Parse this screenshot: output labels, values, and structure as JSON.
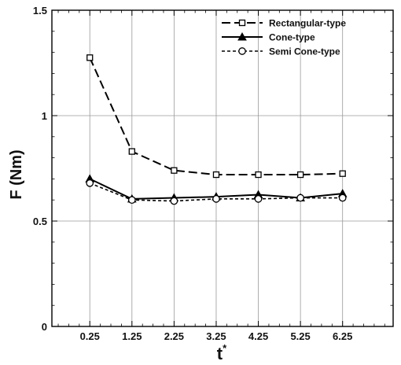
{
  "chart_data": {
    "type": "line",
    "title": "",
    "xlabel": "t",
    "xlabel_superscript": "*",
    "ylabel": "F (Nm)",
    "x": [
      0.25,
      1.25,
      2.25,
      3.25,
      4.25,
      5.25,
      6.25
    ],
    "xtick_labels": [
      "0.25",
      "1.25",
      "2.25",
      "3.25",
      "4.25",
      "5.25",
      "6.25"
    ],
    "xlim": [
      -0.65,
      7.45
    ],
    "ylim": [
      0,
      1.5
    ],
    "ytick_labels": [
      "0",
      "0.5",
      "1",
      "1.5"
    ],
    "yticks": [
      0,
      0.5,
      1,
      1.5
    ],
    "grid": true,
    "legend_position": "top-right",
    "series": [
      {
        "name": "Rectangular-type",
        "values": [
          1.275,
          0.83,
          0.74,
          0.72,
          0.72,
          0.72,
          0.725
        ],
        "line_style": "long-dash",
        "marker": "square",
        "color": "#000000"
      },
      {
        "name": "Cone-type",
        "values": [
          0.7,
          0.605,
          0.61,
          0.615,
          0.625,
          0.61,
          0.63
        ],
        "line_style": "solid",
        "marker": "triangle",
        "color": "#000000"
      },
      {
        "name": "Semi Cone-type",
        "values": [
          0.68,
          0.6,
          0.595,
          0.605,
          0.605,
          0.61,
          0.61
        ],
        "line_style": "short-dash",
        "marker": "circle",
        "color": "#000000"
      }
    ]
  }
}
